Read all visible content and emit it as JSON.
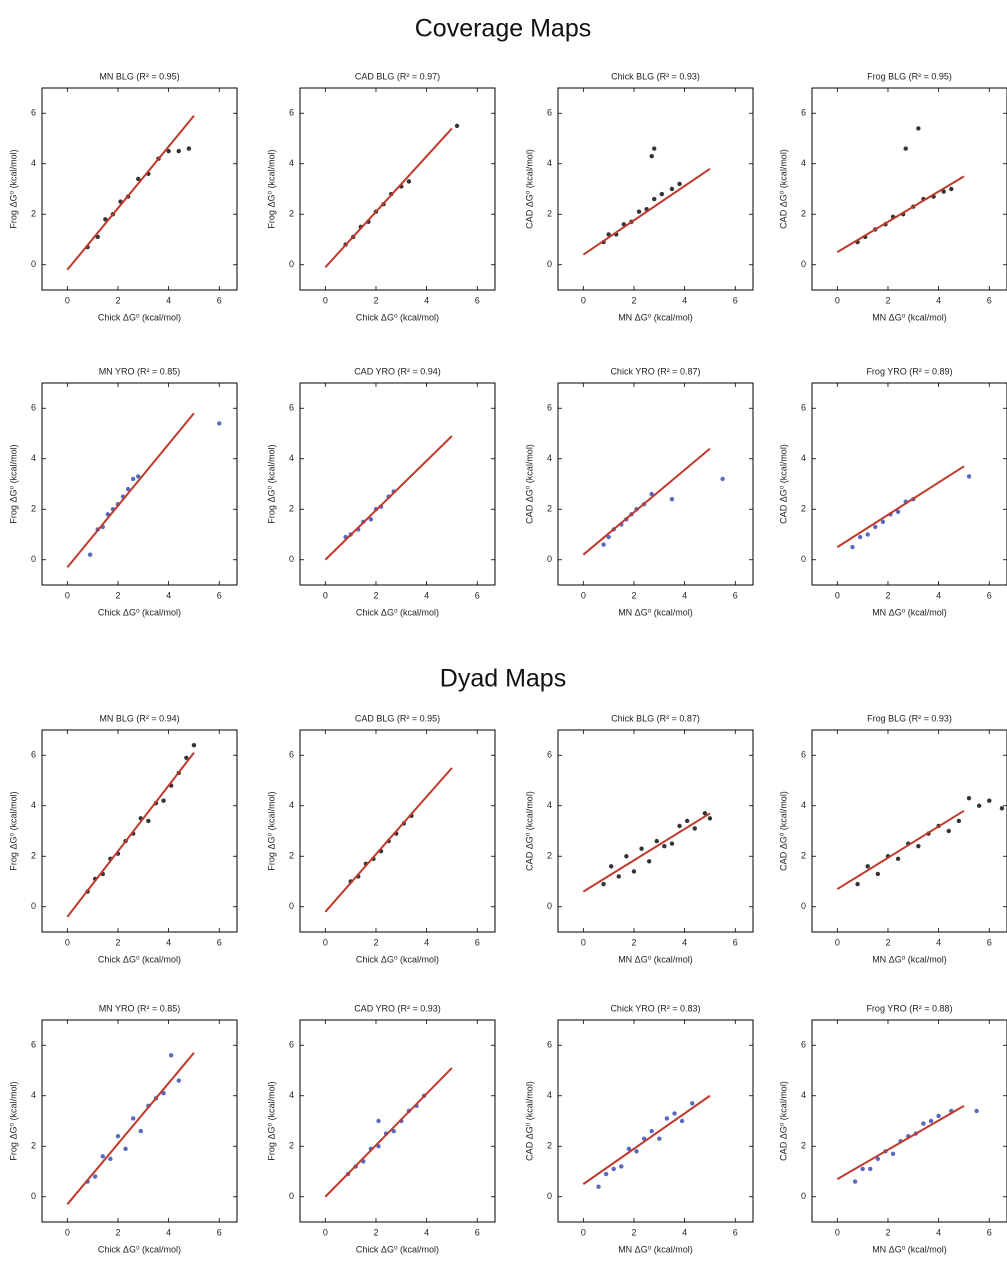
{
  "section_titles": [
    "Coverage Maps",
    "Dyad Maps"
  ],
  "chart_data": [
    {
      "type": "scatter",
      "title": "MN BLG (R² = 0.95)",
      "x_label": "Chick ΔG⁰ (kcal/mol)",
      "y_label": "Frog ΔG⁰ (kcal/mol)",
      "xlim": [
        -1,
        6.7
      ],
      "ylim": [
        -1,
        7
      ],
      "xticks": [
        0,
        2,
        4,
        6
      ],
      "yticks": [
        0,
        2,
        4,
        6
      ],
      "series": [
        {
          "type": "scatter",
          "color": "#111111",
          "x": [
            0.8,
            1.2,
            1.5,
            1.8,
            2.1,
            2.4,
            2.8,
            3.2,
            3.6,
            4.0,
            4.4,
            4.8
          ],
          "y": [
            0.7,
            1.1,
            1.8,
            2.0,
            2.5,
            2.7,
            3.4,
            3.6,
            4.2,
            4.5,
            4.5,
            4.6
          ]
        },
        {
          "type": "line",
          "color": "#c0392b",
          "x": [
            0,
            5
          ],
          "y": [
            -0.2,
            5.9
          ]
        }
      ]
    },
    {
      "type": "scatter",
      "title": "CAD BLG (R² = 0.97)",
      "x_label": "Chick ΔG⁰ (kcal/mol)",
      "y_label": "Frog ΔG⁰ (kcal/mol)",
      "xlim": [
        -1,
        6.7
      ],
      "ylim": [
        -1,
        7
      ],
      "xticks": [
        0,
        2,
        4,
        6
      ],
      "yticks": [
        0,
        2,
        4,
        6
      ],
      "series": [
        {
          "type": "scatter",
          "color": "#111111",
          "x": [
            0.8,
            1.1,
            1.4,
            1.7,
            2.0,
            2.3,
            2.6,
            3.0,
            3.3,
            5.2
          ],
          "y": [
            0.8,
            1.1,
            1.5,
            1.7,
            2.1,
            2.4,
            2.8,
            3.1,
            3.3,
            5.5
          ]
        },
        {
          "type": "line",
          "color": "#c0392b",
          "x": [
            0,
            5
          ],
          "y": [
            -0.1,
            5.4
          ]
        }
      ]
    },
    {
      "type": "scatter",
      "title": "Chick BLG (R² = 0.93)",
      "x_label": "MN ΔG⁰ (kcal/mol)",
      "y_label": "CAD ΔG⁰ (kcal/mol)",
      "xlim": [
        -1,
        6.7
      ],
      "ylim": [
        -1,
        7
      ],
      "xticks": [
        0,
        2,
        4,
        6
      ],
      "yticks": [
        0,
        2,
        4,
        6
      ],
      "series": [
        {
          "type": "scatter",
          "color": "#111111",
          "x": [
            0.8,
            1.0,
            1.3,
            1.6,
            1.9,
            2.2,
            2.5,
            2.8,
            3.1,
            3.5,
            3.8,
            2.7,
            2.8
          ],
          "y": [
            0.9,
            1.2,
            1.2,
            1.6,
            1.7,
            2.1,
            2.2,
            2.6,
            2.8,
            3.0,
            3.2,
            4.3,
            4.6
          ]
        },
        {
          "type": "line",
          "color": "#c0392b",
          "x": [
            0,
            5
          ],
          "y": [
            0.4,
            3.8
          ]
        }
      ]
    },
    {
      "type": "scatter",
      "title": "Frog BLG (R² = 0.95)",
      "x_label": "MN ΔG⁰ (kcal/mol)",
      "y_label": "CAD ΔG⁰ (kcal/mol)",
      "xlim": [
        -1,
        6.7
      ],
      "ylim": [
        -1,
        7
      ],
      "xticks": [
        0,
        2,
        4,
        6
      ],
      "yticks": [
        0,
        2,
        4,
        6
      ],
      "series": [
        {
          "type": "scatter",
          "color": "#111111",
          "x": [
            0.8,
            1.1,
            1.5,
            1.9,
            2.2,
            2.6,
            3.0,
            3.4,
            3.8,
            4.2,
            4.5,
            2.7,
            3.2
          ],
          "y": [
            0.9,
            1.1,
            1.4,
            1.6,
            1.9,
            2.0,
            2.3,
            2.6,
            2.7,
            2.9,
            3.0,
            4.6,
            5.4
          ]
        },
        {
          "type": "line",
          "color": "#c0392b",
          "x": [
            0,
            5
          ],
          "y": [
            0.5,
            3.5
          ]
        }
      ]
    },
    {
      "type": "scatter",
      "title": "MN YRO (R² = 0.85)",
      "x_label": "Chick ΔG⁰ (kcal/mol)",
      "y_label": "Frog ΔG⁰ (kcal/mol)",
      "xlim": [
        -1,
        6.7
      ],
      "ylim": [
        -1,
        7
      ],
      "xticks": [
        0,
        2,
        4,
        6
      ],
      "yticks": [
        0,
        2,
        4,
        6
      ],
      "series": [
        {
          "type": "scatter",
          "color": "#3a4fb5",
          "x": [
            0.9,
            1.2,
            1.4,
            1.6,
            1.8,
            2.0,
            2.2,
            2.4,
            2.6,
            2.8,
            6.0
          ],
          "y": [
            0.2,
            1.2,
            1.3,
            1.8,
            2.0,
            2.2,
            2.5,
            2.8,
            3.2,
            3.3,
            5.4
          ]
        },
        {
          "type": "line",
          "color": "#c0392b",
          "x": [
            0,
            5
          ],
          "y": [
            -0.3,
            5.8
          ]
        }
      ]
    },
    {
      "type": "scatter",
      "title": "CAD YRO (R² = 0.94)",
      "x_label": "Chick ΔG⁰ (kcal/mol)",
      "y_label": "Frog ΔG⁰ (kcal/mol)",
      "xlim": [
        -1,
        6.7
      ],
      "ylim": [
        -1,
        7
      ],
      "xticks": [
        0,
        2,
        4,
        6
      ],
      "yticks": [
        0,
        2,
        4,
        6
      ],
      "series": [
        {
          "type": "scatter",
          "color": "#3a4fb5",
          "x": [
            0.8,
            1.0,
            1.3,
            1.5,
            1.8,
            2.0,
            2.2,
            2.5,
            2.7
          ],
          "y": [
            0.9,
            1.0,
            1.2,
            1.5,
            1.6,
            2.0,
            2.1,
            2.5,
            2.7
          ]
        },
        {
          "type": "line",
          "color": "#c0392b",
          "x": [
            0,
            5
          ],
          "y": [
            0,
            4.9
          ]
        }
      ]
    },
    {
      "type": "scatter",
      "title": "Chick YRO (R² = 0.87)",
      "x_label": "MN ΔG⁰ (kcal/mol)",
      "y_label": "CAD ΔG⁰ (kcal/mol)",
      "xlim": [
        -1,
        6.7
      ],
      "ylim": [
        -1,
        7
      ],
      "xticks": [
        0,
        2,
        4,
        6
      ],
      "yticks": [
        0,
        2,
        4,
        6
      ],
      "series": [
        {
          "type": "scatter",
          "color": "#3a4fb5",
          "x": [
            0.8,
            1.0,
            1.2,
            1.5,
            1.7,
            1.9,
            2.1,
            2.4,
            2.7,
            3.5,
            5.5
          ],
          "y": [
            0.6,
            0.9,
            1.2,
            1.4,
            1.6,
            1.8,
            2.0,
            2.2,
            2.6,
            2.4,
            3.2
          ]
        },
        {
          "type": "line",
          "color": "#c0392b",
          "x": [
            0,
            5
          ],
          "y": [
            0.2,
            4.4
          ]
        }
      ]
    },
    {
      "type": "scatter",
      "title": "Frog YRO (R² = 0.89)",
      "x_label": "MN ΔG⁰ (kcal/mol)",
      "y_label": "CAD ΔG⁰ (kcal/mol)",
      "xlim": [
        -1,
        6.7
      ],
      "ylim": [
        -1,
        7
      ],
      "xticks": [
        0,
        2,
        4,
        6
      ],
      "yticks": [
        0,
        2,
        4,
        6
      ],
      "series": [
        {
          "type": "scatter",
          "color": "#3a4fb5",
          "x": [
            0.6,
            0.9,
            1.2,
            1.5,
            1.8,
            2.1,
            2.4,
            2.7,
            3.0,
            5.2
          ],
          "y": [
            0.5,
            0.9,
            1.0,
            1.3,
            1.5,
            1.8,
            1.9,
            2.3,
            2.4,
            3.3
          ]
        },
        {
          "type": "line",
          "color": "#c0392b",
          "x": [
            0,
            5
          ],
          "y": [
            0.5,
            3.7
          ]
        }
      ]
    },
    {
      "type": "scatter",
      "title": "MN BLG (R² = 0.94)",
      "x_label": "Chick ΔG⁰ (kcal/mol)",
      "y_label": "Frog ΔG⁰ (kcal/mol)",
      "xlim": [
        -1,
        6.7
      ],
      "ylim": [
        -1,
        7
      ],
      "xticks": [
        0,
        2,
        4,
        6
      ],
      "yticks": [
        0,
        2,
        4,
        6
      ],
      "series": [
        {
          "type": "scatter",
          "color": "#111111",
          "x": [
            0.8,
            1.1,
            1.4,
            1.7,
            2.0,
            2.3,
            2.6,
            2.9,
            3.2,
            3.5,
            3.8,
            4.1,
            4.4,
            4.7,
            5.0
          ],
          "y": [
            0.6,
            1.1,
            1.3,
            1.9,
            2.1,
            2.6,
            2.9,
            3.5,
            3.4,
            4.1,
            4.2,
            4.8,
            5.3,
            5.9,
            6.4
          ]
        },
        {
          "type": "line",
          "color": "#c0392b",
          "x": [
            0,
            5
          ],
          "y": [
            -0.4,
            6.1
          ]
        }
      ]
    },
    {
      "type": "scatter",
      "title": "CAD BLG (R² = 0.95)",
      "x_label": "Chick ΔG⁰ (kcal/mol)",
      "y_label": "Frog ΔG⁰ (kcal/mol)",
      "xlim": [
        -1,
        6.7
      ],
      "ylim": [
        -1,
        7
      ],
      "xticks": [
        0,
        2,
        4,
        6
      ],
      "yticks": [
        0,
        2,
        4,
        6
      ],
      "series": [
        {
          "type": "scatter",
          "color": "#111111",
          "x": [
            1.0,
            1.3,
            1.6,
            1.9,
            2.2,
            2.5,
            2.8,
            3.1,
            3.4
          ],
          "y": [
            1.0,
            1.2,
            1.7,
            1.9,
            2.2,
            2.6,
            2.9,
            3.3,
            3.6
          ]
        },
        {
          "type": "line",
          "color": "#c0392b",
          "x": [
            0,
            5
          ],
          "y": [
            -0.2,
            5.5
          ]
        }
      ]
    },
    {
      "type": "scatter",
      "title": "Chick BLG (R² = 0.87)",
      "x_label": "MN ΔG⁰ (kcal/mol)",
      "y_label": "CAD ΔG⁰ (kcal/mol)",
      "xlim": [
        -1,
        6.7
      ],
      "ylim": [
        -1,
        7
      ],
      "xticks": [
        0,
        2,
        4,
        6
      ],
      "yticks": [
        0,
        2,
        4,
        6
      ],
      "series": [
        {
          "type": "scatter",
          "color": "#111111",
          "x": [
            0.8,
            1.1,
            1.4,
            1.7,
            2.0,
            2.3,
            2.6,
            2.9,
            3.2,
            3.5,
            3.8,
            4.1,
            4.4,
            4.8,
            5.0
          ],
          "y": [
            0.9,
            1.6,
            1.2,
            2.0,
            1.4,
            2.3,
            1.8,
            2.6,
            2.4,
            2.5,
            3.2,
            3.4,
            3.1,
            3.7,
            3.5
          ]
        },
        {
          "type": "line",
          "color": "#c0392b",
          "x": [
            0,
            5
          ],
          "y": [
            0.6,
            3.7
          ]
        }
      ]
    },
    {
      "type": "scatter",
      "title": "Frog BLG (R² = 0.93)",
      "x_label": "MN ΔG⁰ (kcal/mol)",
      "y_label": "CAD ΔG⁰ (kcal/mol)",
      "xlim": [
        -1,
        6.7
      ],
      "ylim": [
        -1,
        7
      ],
      "xticks": [
        0,
        2,
        4,
        6
      ],
      "yticks": [
        0,
        2,
        4,
        6
      ],
      "series": [
        {
          "type": "scatter",
          "color": "#111111",
          "x": [
            0.8,
            1.2,
            1.6,
            2.0,
            2.4,
            2.8,
            3.2,
            3.6,
            4.0,
            4.4,
            4.8,
            5.2,
            5.6,
            6.0,
            6.5
          ],
          "y": [
            0.9,
            1.6,
            1.3,
            2.0,
            1.9,
            2.5,
            2.4,
            2.9,
            3.2,
            3.0,
            3.4,
            4.3,
            4.0,
            4.2,
            3.9
          ]
        },
        {
          "type": "line",
          "color": "#c0392b",
          "x": [
            0,
            5
          ],
          "y": [
            0.7,
            3.8
          ]
        }
      ]
    },
    {
      "type": "scatter",
      "title": "MN YRO (R² = 0.85)",
      "x_label": "Chick ΔG⁰ (kcal/mol)",
      "y_label": "Frog ΔG⁰ (kcal/mol)",
      "xlim": [
        -1,
        6.7
      ],
      "ylim": [
        -1,
        7
      ],
      "xticks": [
        0,
        2,
        4,
        6
      ],
      "yticks": [
        0,
        2,
        4,
        6
      ],
      "series": [
        {
          "type": "scatter",
          "color": "#3a4fb5",
          "x": [
            0.8,
            1.1,
            1.4,
            1.7,
            2.0,
            2.3,
            2.6,
            2.9,
            3.2,
            3.5,
            3.8,
            4.1,
            4.4
          ],
          "y": [
            0.6,
            0.8,
            1.6,
            1.5,
            2.4,
            1.9,
            3.1,
            2.6,
            3.6,
            3.9,
            4.1,
            5.6,
            4.6
          ]
        },
        {
          "type": "line",
          "color": "#c0392b",
          "x": [
            0,
            5
          ],
          "y": [
            -0.3,
            5.7
          ]
        }
      ]
    },
    {
      "type": "scatter",
      "title": "CAD YRO (R² = 0.93)",
      "x_label": "Chick ΔG⁰ (kcal/mol)",
      "y_label": "Frog ΔG⁰ (kcal/mol)",
      "xlim": [
        -1,
        6.7
      ],
      "ylim": [
        -1,
        7
      ],
      "xticks": [
        0,
        2,
        4,
        6
      ],
      "yticks": [
        0,
        2,
        4,
        6
      ],
      "series": [
        {
          "type": "scatter",
          "color": "#3a4fb5",
          "x": [
            0.9,
            1.2,
            1.5,
            1.8,
            2.1,
            2.4,
            2.7,
            3.0,
            3.3,
            3.6,
            3.9,
            2.1
          ],
          "y": [
            0.9,
            1.2,
            1.4,
            1.9,
            2.0,
            2.5,
            2.6,
            3.0,
            3.4,
            3.6,
            4.0,
            3.0
          ]
        },
        {
          "type": "line",
          "color": "#c0392b",
          "x": [
            0,
            5
          ],
          "y": [
            0,
            5.1
          ]
        }
      ]
    },
    {
      "type": "scatter",
      "title": "Chick YRO (R² = 0.83)",
      "x_label": "MN ΔG⁰ (kcal/mol)",
      "y_label": "CAD ΔG⁰ (kcal/mol)",
      "xlim": [
        -1,
        6.7
      ],
      "ylim": [
        -1,
        7
      ],
      "xticks": [
        0,
        2,
        4,
        6
      ],
      "yticks": [
        0,
        2,
        4,
        6
      ],
      "series": [
        {
          "type": "scatter",
          "color": "#3a4fb5",
          "x": [
            0.6,
            0.9,
            1.2,
            1.5,
            1.8,
            2.1,
            2.4,
            2.7,
            3.0,
            3.3,
            3.6,
            3.9,
            4.3
          ],
          "y": [
            0.4,
            0.9,
            1.1,
            1.2,
            1.9,
            1.8,
            2.3,
            2.6,
            2.3,
            3.1,
            3.3,
            3.0,
            3.7
          ]
        },
        {
          "type": "line",
          "color": "#c0392b",
          "x": [
            0,
            5
          ],
          "y": [
            0.5,
            4.0
          ]
        }
      ]
    },
    {
      "type": "scatter",
      "title": "Frog YRO (R² = 0.88)",
      "x_label": "MN ΔG⁰ (kcal/mol)",
      "y_label": "CAD ΔG⁰ (kcal/mol)",
      "xlim": [
        -1,
        6.7
      ],
      "ylim": [
        -1,
        7
      ],
      "xticks": [
        0,
        2,
        4,
        6
      ],
      "yticks": [
        0,
        2,
        4,
        6
      ],
      "series": [
        {
          "type": "scatter",
          "color": "#3a4fb5",
          "x": [
            0.7,
            1.0,
            1.3,
            1.6,
            1.9,
            2.2,
            2.5,
            2.8,
            3.1,
            3.4,
            3.7,
            4.0,
            4.5,
            5.5
          ],
          "y": [
            0.6,
            1.1,
            1.1,
            1.5,
            1.8,
            1.7,
            2.2,
            2.4,
            2.5,
            2.9,
            3.0,
            3.2,
            3.4,
            3.4
          ]
        },
        {
          "type": "line",
          "color": "#c0392b",
          "x": [
            0,
            5
          ],
          "y": [
            0.7,
            3.6
          ]
        }
      ]
    }
  ]
}
